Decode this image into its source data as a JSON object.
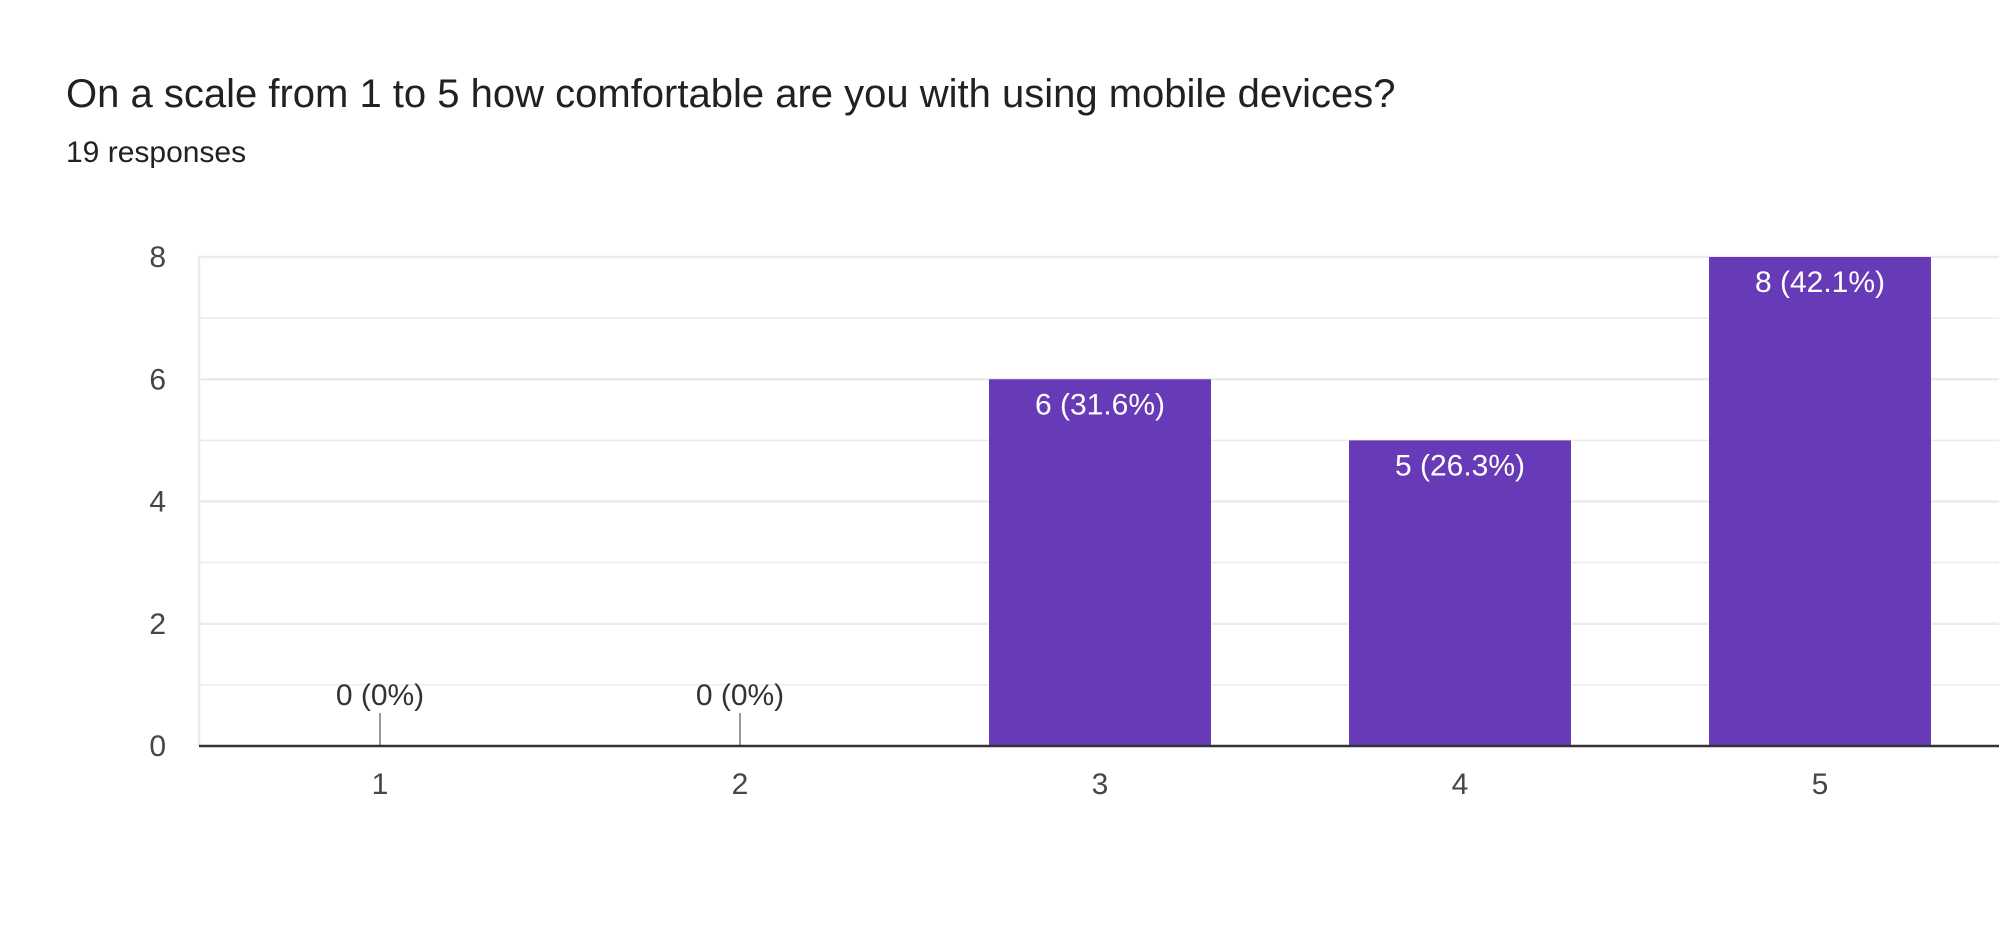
{
  "header": {
    "title": "On a scale from 1 to 5 how comfortable are you with using mobile devices?",
    "subtitle": "19 responses"
  },
  "colors": {
    "bar": "#673ab7",
    "grid": "#ebebeb",
    "axis": "#333333",
    "label_inside": "#ffffff",
    "label_outside": "#333333"
  },
  "chart_data": {
    "type": "bar",
    "title": "On a scale from 1 to 5 how comfortable are you with using mobile devices?",
    "xlabel": "",
    "ylabel": "",
    "categories": [
      "1",
      "2",
      "3",
      "4",
      "5"
    ],
    "values": [
      0,
      0,
      6,
      5,
      8
    ],
    "data_labels": [
      "0 (0%)",
      "0 (0%)",
      "6 (31.6%)",
      "5 (26.3%)",
      "8 (42.1%)"
    ],
    "ylim": [
      0,
      8
    ],
    "yticks": [
      0,
      2,
      4,
      6,
      8
    ],
    "grid": true,
    "legend": "none"
  }
}
